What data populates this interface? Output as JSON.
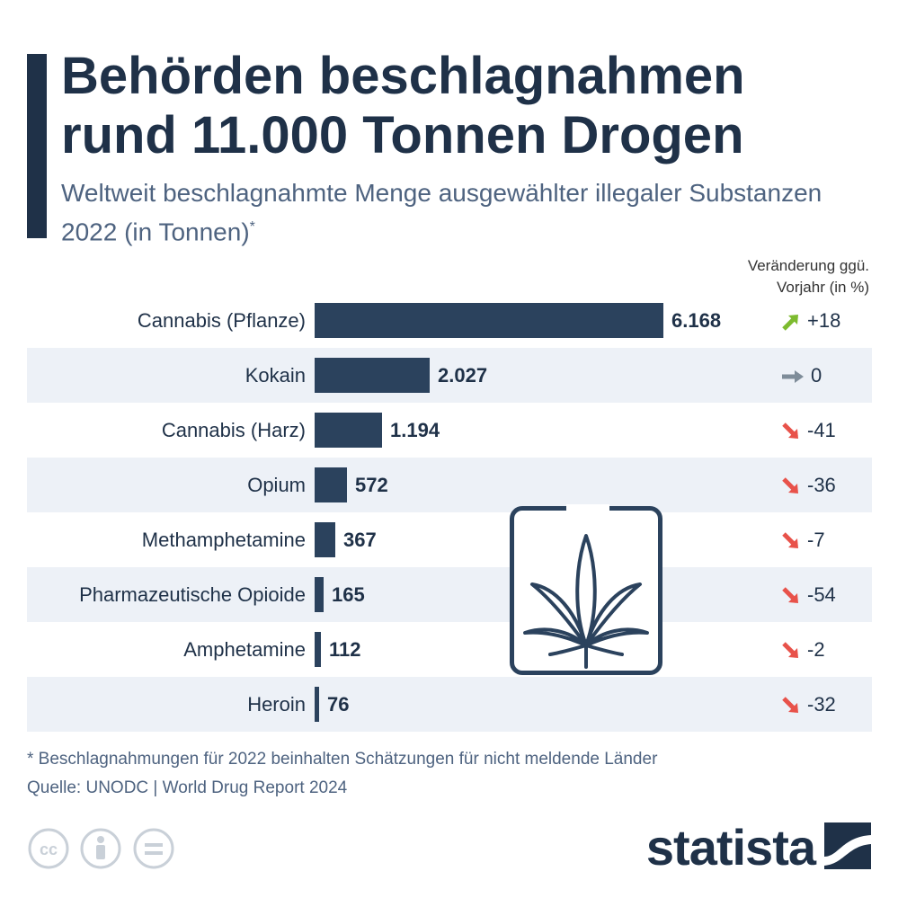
{
  "chart_data": {
    "type": "bar",
    "orientation": "horizontal",
    "title": "Behörden beschlagnahmen rund 11.000 Tonnen Drogen",
    "subtitle": "Weltweit beschlagnahmte Menge ausgewählter illegaler Substanzen 2022 (in Tonnen)",
    "subtitle_mark": "*",
    "change_header": [
      "Veränderung ggü.",
      "Vorjahr (in %)"
    ],
    "categories": [
      "Cannabis (Pflanze)",
      "Kokain",
      "Cannabis (Harz)",
      "Opium",
      "Methamphetamine",
      "Pharmazeutische Opioide",
      "Amphetamine",
      "Heroin"
    ],
    "values": [
      6168,
      2027,
      1194,
      572,
      367,
      165,
      112,
      76
    ],
    "value_labels": [
      "6.168",
      "2.027",
      "1.194",
      "572",
      "367",
      "165",
      "112",
      "76"
    ],
    "changes": [
      "+18",
      "0",
      "-41",
      "-36",
      "-7",
      "-54",
      "-2",
      "-32"
    ],
    "change_direction": [
      "up",
      "flat",
      "down",
      "down",
      "down",
      "down",
      "down",
      "down"
    ],
    "legend": "none",
    "grid": false
  },
  "footnote": "* Beschlagnahmungen für 2022 beinhalten Schätzungen für nicht meldende Länder",
  "source": "Quelle: UNODC | World Drug Report 2024",
  "logo_text": "statista",
  "icons": [
    "cannabis-leaf-icon",
    "cc-icon",
    "attribution-icon",
    "no-derivatives-icon",
    "statista-logo-icon"
  ],
  "colors": {
    "bar": "#2b425d",
    "title": "#1f3148",
    "up_arrow": "#7dbb2f",
    "flat_arrow": "#7e8c99",
    "down_arrow": "#e8524a",
    "row_alt": "#edf1f7"
  }
}
